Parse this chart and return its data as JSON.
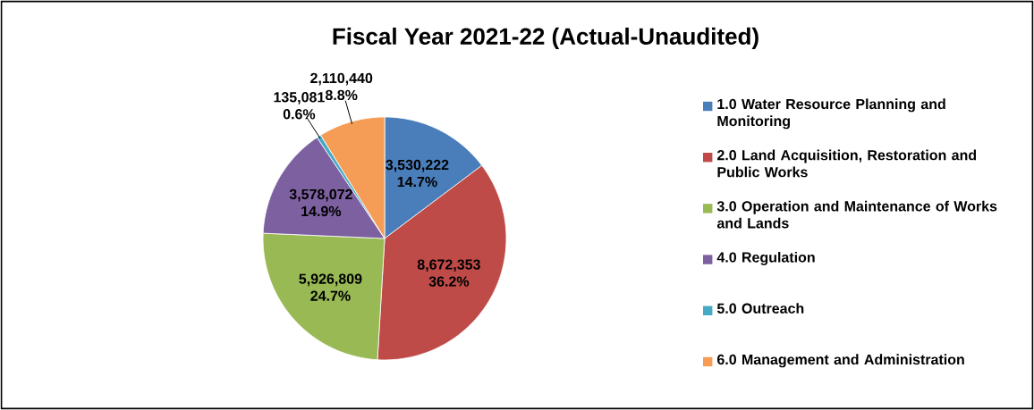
{
  "chart_data": {
    "type": "pie",
    "title": "Fiscal Year 2021-22 (Actual-Unaudited)",
    "categories": [
      "1.0 Water Resource Planning and Monitoring",
      "2.0 Land Acquisition, Restoration and Public Works",
      "3.0 Operation and Maintenance of Works and Lands",
      "4.0 Regulation",
      "5.0 Outreach",
      "6.0 Management and Administration"
    ],
    "values": [
      3530222,
      8672353,
      5926809,
      3578072,
      135081,
      2110440
    ],
    "value_labels": [
      "3,530,222 14.7%",
      "8,672,353 36.2%",
      "5,926,809 24.7%",
      "3,578,072 14.9%",
      "135,081 0.6%",
      "2,110,440 8.8%"
    ],
    "colors": [
      "#4a7ebb",
      "#be4b48",
      "#98b954",
      "#7d60a0",
      "#46aac5",
      "#f59d56"
    ],
    "legend": "right"
  }
}
